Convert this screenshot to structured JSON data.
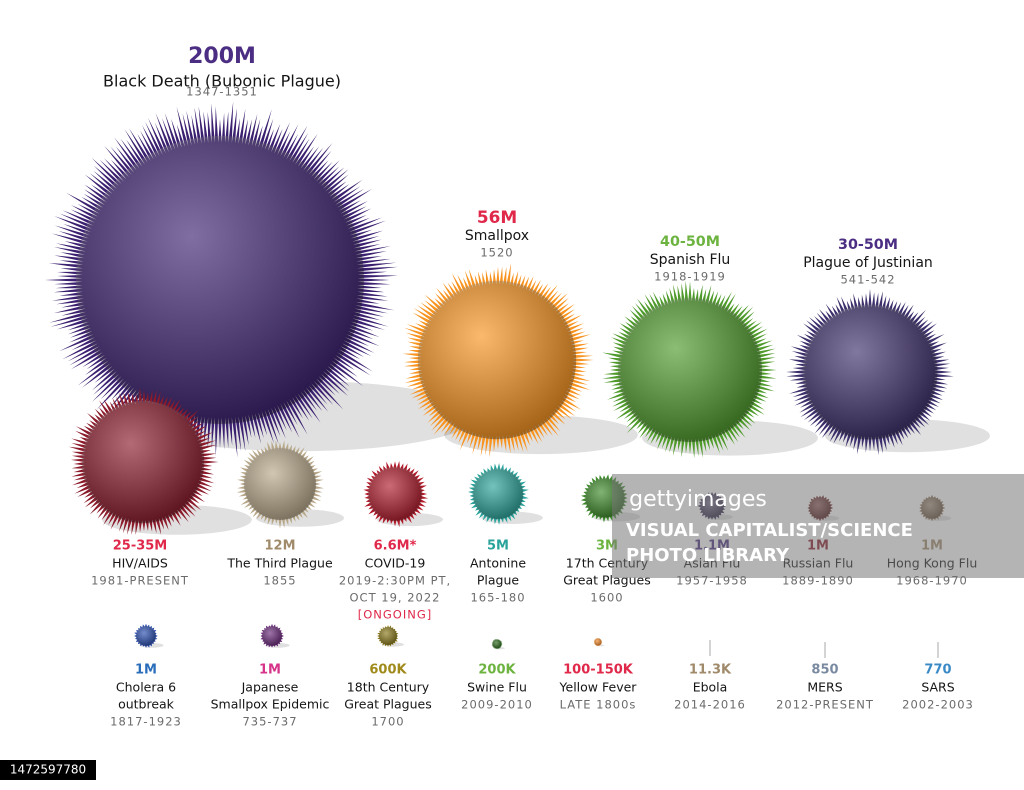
{
  "items": [
    {
      "toll": "200M",
      "color": "#4b2e83",
      "name": [
        "Black Death (Bubonic Plague)"
      ],
      "dates": [
        "1347-1351"
      ]
    },
    {
      "toll": "56M",
      "color": "#e0284a",
      "name": [
        "Smallpox"
      ],
      "dates": [
        "1520"
      ]
    },
    {
      "toll": "40-50M",
      "color": "#6cb33f",
      "name": [
        "Spanish Flu"
      ],
      "dates": [
        "1918-1919"
      ]
    },
    {
      "toll": "30-50M",
      "color": "#4b2e83",
      "name": [
        "Plague of Justinian"
      ],
      "dates": [
        "541-542"
      ]
    },
    {
      "toll": "25-35M",
      "color": "#e0284a",
      "name": [
        "HIV/AIDS"
      ],
      "dates": [
        "1981-PRESENT"
      ]
    },
    {
      "toll": "12M",
      "color": "#a08a6a",
      "name": [
        "The Third Plague"
      ],
      "dates": [
        "1855"
      ]
    },
    {
      "toll": "6.6M*",
      "color": "#e0284a",
      "name": [
        "COVID-19"
      ],
      "dates": [
        "2019-2:30PM PT,",
        "OCT 19, 2022",
        "[ONGOING]"
      ]
    },
    {
      "toll": "5M",
      "color": "#2aa39a",
      "name": [
        "Antonine",
        "Plague"
      ],
      "dates": [
        "165-180"
      ]
    },
    {
      "toll": "3M",
      "color": "#6cb33f",
      "name": [
        "17th Century",
        "Great Plagues"
      ],
      "dates": [
        "1600"
      ]
    },
    {
      "toll": "1.1M",
      "color": "#4b2e83",
      "name": [
        "Asian Flu"
      ],
      "dates": [
        "1957-1958"
      ]
    },
    {
      "toll": "1M",
      "color": "#8b1a2b",
      "name": [
        "Russian Flu"
      ],
      "dates": [
        "1889-1890"
      ]
    },
    {
      "toll": "1M",
      "color": "#a08a6a",
      "name": [
        "Hong Kong Flu"
      ],
      "dates": [
        "1968-1970"
      ]
    },
    {
      "toll": "1M",
      "color": "#2a6ebb",
      "name": [
        "Cholera 6",
        "outbreak"
      ],
      "dates": [
        "1817-1923"
      ]
    },
    {
      "toll": "1M",
      "color": "#d6338a",
      "name": [
        "Japanese",
        "Smallpox Epidemic"
      ],
      "dates": [
        "735-737"
      ]
    },
    {
      "toll": "600K",
      "color": "#a08a1a",
      "name": [
        "18th Century",
        "Great Plagues"
      ],
      "dates": [
        "1700"
      ]
    },
    {
      "toll": "200K",
      "color": "#6cb33f",
      "name": [
        "Swine Flu"
      ],
      "dates": [
        "2009-2010"
      ]
    },
    {
      "toll": "100-150K",
      "color": "#e0284a",
      "name": [
        "Yellow Fever"
      ],
      "dates": [
        "LATE 1800s"
      ]
    },
    {
      "toll": "11.3K",
      "color": "#a08a6a",
      "name": [
        "Ebola"
      ],
      "dates": [
        "2014-2016"
      ]
    },
    {
      "toll": "850",
      "color": "#7a8aa0",
      "name": [
        "MERS"
      ],
      "dates": [
        "2012-PRESENT"
      ]
    },
    {
      "toll": "770",
      "color": "#3a8ac6",
      "name": [
        "SARS"
      ],
      "dates": [
        "2002-2003"
      ]
    }
  ],
  "watermark": {
    "brand": "gettyimages",
    "credit": [
      "VISUAL CAPITALIST/SCIENCE",
      "PHOTO LIBRARY"
    ]
  },
  "image_id": "1472597780"
}
